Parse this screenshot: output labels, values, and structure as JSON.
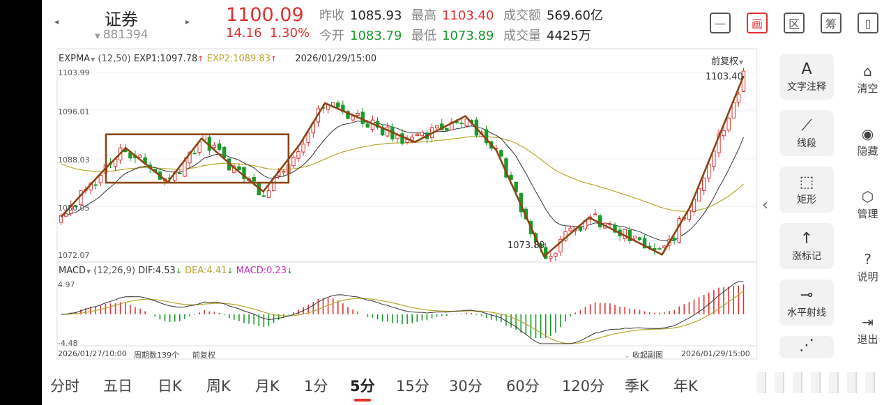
{
  "header": {
    "name": "证券",
    "code": "881394",
    "price": "1100.09",
    "change": "14.16",
    "change_pct": "1.30%",
    "stats": [
      {
        "label": "昨收",
        "value": "1085.93",
        "tone": "dark"
      },
      {
        "label": "最高",
        "value": "1103.40",
        "tone": "red"
      },
      {
        "label": "成交额",
        "value": "569.60亿",
        "tone": "dark"
      },
      {
        "label": "今开",
        "value": "1083.79",
        "tone": "green"
      },
      {
        "label": "最低",
        "value": "1073.89",
        "tone": "green"
      },
      {
        "label": "成交量",
        "value": "4425万",
        "tone": "dark"
      }
    ],
    "tool_icons": [
      {
        "name": "minus-box-icon",
        "glyph": "—"
      },
      {
        "name": "draw-icon",
        "glyph": "画"
      },
      {
        "name": "region-icon",
        "glyph": "区"
      },
      {
        "name": "chip-icon",
        "glyph": "筹"
      },
      {
        "name": "device-switch-icon",
        "glyph": "▯"
      }
    ]
  },
  "main_indicator": {
    "name": "EXPMA",
    "params": "(12,50)",
    "exp1": "EXP1:1097.78",
    "exp2": "EXP2:1089.83",
    "datetime": "2026/01/29/15:00",
    "adjust": "前复权"
  },
  "y_labels": [
    "1103.99",
    "1096.01",
    "1088.03",
    "1080.05",
    "1072.07"
  ],
  "price_annotations": {
    "high": "1103.40",
    "low": "1073.89"
  },
  "sub_indicator": {
    "name": "MACD",
    "params": "(12,26,9)",
    "dif": "DIF:4.53",
    "dea": "DEA:4.41",
    "macd": "MACD:0.23",
    "top": "4.97",
    "bottom": "-4.48"
  },
  "footer": {
    "start": "2026/01/27/10:00",
    "period_count": "周期数139个",
    "adjust": "前复权",
    "collapse": "收起副图",
    "end": "2026/01/29/15:00"
  },
  "tools": [
    {
      "icon": "A",
      "label": "文字注释",
      "icon_name": "text-annotation-icon"
    },
    {
      "icon": "⟋",
      "label": "线段",
      "icon_name": "line-segment-icon"
    },
    {
      "icon": "⬚",
      "label": "矩形",
      "icon_name": "rectangle-icon"
    },
    {
      "icon": "↑",
      "label": "涨标记",
      "icon_name": "rise-marker-icon"
    },
    {
      "icon": "⊸",
      "label": "水平射线",
      "icon_name": "horizontal-ray-icon"
    },
    {
      "icon": "⋰",
      "label": "",
      "icon_name": "wave-tool-icon"
    }
  ],
  "side_actions": [
    {
      "icon": "⌂",
      "label": "清空",
      "icon_name": "clear-icon"
    },
    {
      "icon": "◉",
      "label": "隐藏",
      "icon_name": "hide-icon"
    },
    {
      "icon": "⬡",
      "label": "管理",
      "icon_name": "manage-icon"
    },
    {
      "icon": "?",
      "label": "说明",
      "icon_name": "help-icon"
    },
    {
      "icon": "⇥",
      "label": "退出",
      "icon_name": "exit-icon"
    }
  ],
  "periods": [
    "分时",
    "五日",
    "日K",
    "周K",
    "月K",
    "1分",
    "5分",
    "15分",
    "30分",
    "60分",
    "120分",
    "季K",
    "年K"
  ],
  "active_period": "5分",
  "colors": {
    "up": "#e03030",
    "down": "#1a9a2a",
    "exp1": "#333333",
    "exp2": "#b8a62a",
    "drawing": "#8b4513"
  },
  "chart_data": {
    "type": "candlestick",
    "price_range": [
      1072.07,
      1103.99
    ],
    "macd_range": [
      -4.48,
      4.97
    ],
    "path_points": [
      [
        0,
        1079.5
      ],
      [
        14,
        1086.8
      ],
      [
        23,
        1091.2
      ],
      [
        38,
        1085.4
      ],
      [
        50,
        1092.8
      ],
      [
        62,
        1087.7
      ],
      [
        72,
        1083.8
      ],
      [
        85,
        1091.8
      ],
      [
        94,
        1098.8
      ],
      [
        126,
        1092.2
      ],
      [
        144,
        1096.6
      ],
      [
        155,
        1090.8
      ],
      [
        172,
        1072.8
      ],
      [
        188,
        1079.4
      ],
      [
        214,
        1073.1
      ],
      [
        224,
        1081.2
      ],
      [
        243,
        1103.4
      ]
    ],
    "rect_top": 1093.5,
    "rect_bottom": 1085.3,
    "rect_from": 16,
    "rect_to": 81,
    "count": 139
  }
}
